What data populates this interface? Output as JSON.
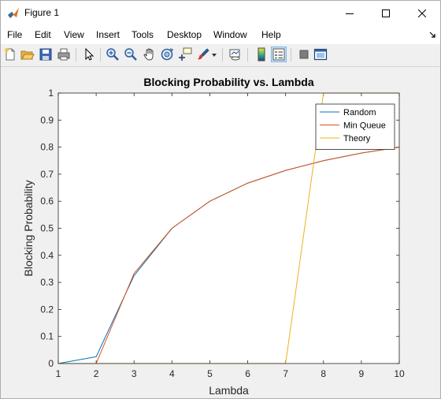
{
  "window": {
    "title": "Figure 1",
    "minimize_icon": "minimize-icon",
    "maximize_icon": "maximize-icon",
    "close_icon": "close-icon"
  },
  "menu": {
    "items": [
      "File",
      "Edit",
      "View",
      "Insert",
      "Tools",
      "Desktop",
      "Window",
      "Help"
    ]
  },
  "toolbar": {
    "icons": [
      "new-figure-icon",
      "open-file-icon",
      "save-icon",
      "print-icon",
      "edit-plot-arrow-icon",
      "zoom-in-icon",
      "zoom-out-icon",
      "pan-hand-icon",
      "rotate-3d-icon",
      "data-cursor-icon",
      "brush-icon",
      "link-plot-icon",
      "insert-colorbar-icon",
      "insert-legend-icon",
      "hide-plot-tools-icon",
      "show-plot-tools-icon"
    ]
  },
  "colors": {
    "random": "#0072bd",
    "min_queue": "#d95319",
    "theory": "#edb120",
    "axes_background": "#ffffff",
    "figure_background": "#f0f0f0"
  },
  "chart_data": {
    "type": "line",
    "title": "Blocking Probability vs. Lambda",
    "xlabel": "Lambda",
    "ylabel": "Blocking Probability",
    "xlim": [
      1,
      10
    ],
    "ylim": [
      0,
      1
    ],
    "xticks": [
      "1",
      "2",
      "3",
      "4",
      "5",
      "6",
      "7",
      "8",
      "9",
      "10"
    ],
    "yticks": [
      "0",
      "0.1",
      "0.2",
      "0.3",
      "0.4",
      "0.5",
      "0.6",
      "0.7",
      "0.8",
      "0.9",
      "1"
    ],
    "grid": false,
    "legend_position": "top-right",
    "series": [
      {
        "name": "Random",
        "color": "#0072bd",
        "x": [
          1,
          2,
          3,
          4,
          5,
          6,
          7,
          8,
          9,
          10
        ],
        "y": [
          0,
          0.025,
          0.325,
          0.5,
          0.6,
          0.667,
          0.714,
          0.75,
          0.778,
          0.8
        ]
      },
      {
        "name": "Min Queue",
        "color": "#d95319",
        "x": [
          1,
          2,
          3,
          4,
          5,
          6,
          7,
          8,
          9,
          10
        ],
        "y": [
          0,
          0,
          0.333,
          0.5,
          0.6,
          0.667,
          0.714,
          0.75,
          0.778,
          0.8
        ]
      },
      {
        "name": "Theory",
        "color": "#edb120",
        "x": [
          1,
          2,
          3,
          4,
          5,
          6,
          7,
          8,
          9,
          10
        ],
        "y": [
          0,
          0,
          0,
          0,
          0,
          0,
          0,
          1,
          1,
          1
        ]
      }
    ]
  }
}
